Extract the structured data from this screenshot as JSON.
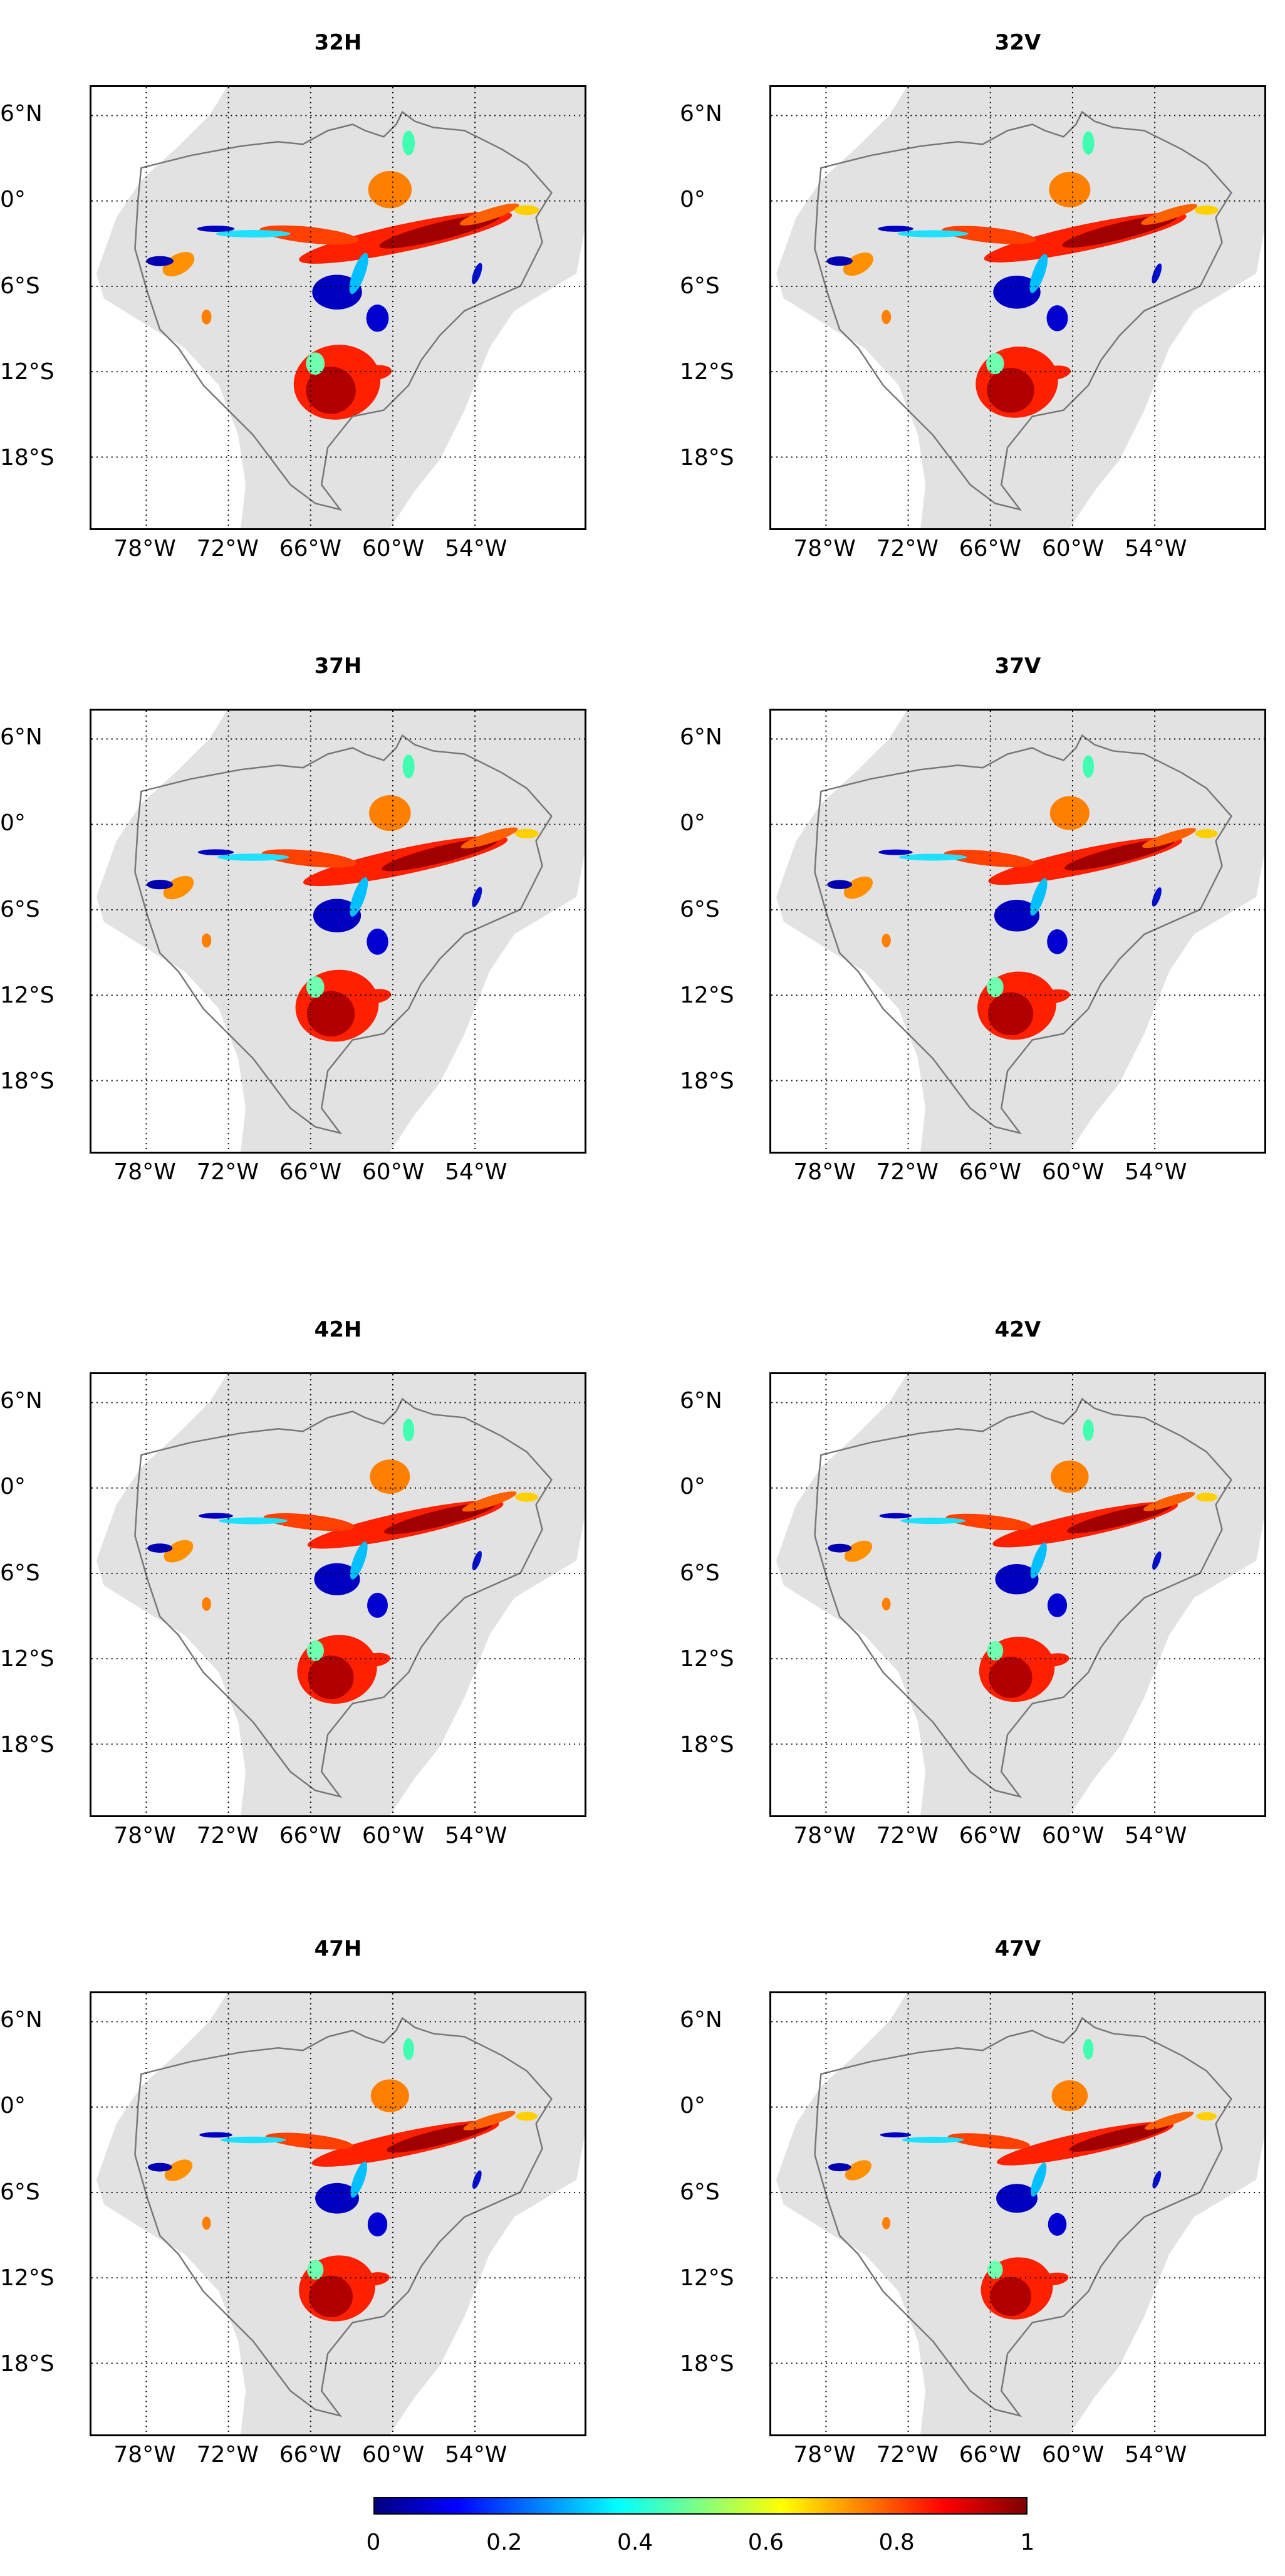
{
  "figure": {
    "panels": [
      {
        "id": "p32H",
        "title": "32H"
      },
      {
        "id": "p32V",
        "title": "32V"
      },
      {
        "id": "p37H",
        "title": "37H"
      },
      {
        "id": "p37V",
        "title": "37V"
      },
      {
        "id": "p42H",
        "title": "42H"
      },
      {
        "id": "p42V",
        "title": "42V"
      },
      {
        "id": "p47H",
        "title": "47H"
      },
      {
        "id": "p47V",
        "title": "47V"
      }
    ],
    "lat_tick_labels": [
      "6°N",
      "0°",
      "6°S",
      "12°S",
      "18°S"
    ],
    "lon_tick_labels": [
      "78°W",
      "72°W",
      "66°W",
      "60°W",
      "54°W"
    ],
    "colorbar": {
      "tick_labels": [
        "0",
        "0.2",
        "0.4",
        "0.6",
        "0.8",
        "1"
      ],
      "range": [
        0,
        1
      ],
      "colormap": "jet",
      "colors": [
        "#00007f",
        "#0000ff",
        "#0080ff",
        "#00ffff",
        "#80ff80",
        "#ffff00",
        "#ff8000",
        "#ff0000",
        "#7f0000"
      ]
    }
  },
  "map_style": {
    "land_color": "#e2e2e2",
    "basin_outline_color": "#777777",
    "grid": "dotted"
  },
  "map_data": {
    "lat_range": [
      -23,
      8
    ],
    "lon_range": [
      -82,
      -46
    ],
    "lat_ticks": [
      6,
      0,
      -6,
      -12,
      -18
    ],
    "lon_ticks": [
      -78,
      -72,
      -66,
      -60,
      -54
    ]
  }
}
